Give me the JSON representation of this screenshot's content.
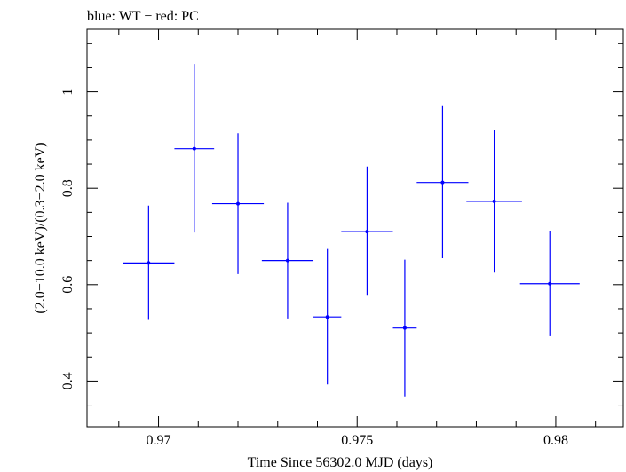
{
  "chart_data": {
    "type": "scatter",
    "title": "blue: WT − red: PC",
    "xlabel": "Time Since 56302.0 MJD (days)",
    "ylabel": "(2.0−10.0 keV)/(0.3−2.0 keV)",
    "xlim": [
      0.9682,
      0.9817
    ],
    "ylim": [
      0.305,
      1.13
    ],
    "x_ticks": [
      {
        "value": 0.97,
        "label": "0.97"
      },
      {
        "value": 0.975,
        "label": "0.975"
      },
      {
        "value": 0.98,
        "label": "0.98"
      }
    ],
    "y_ticks": [
      {
        "value": 0.4,
        "label": "0.4"
      },
      {
        "value": 0.6,
        "label": "0.6"
      },
      {
        "value": 0.8,
        "label": "0.8"
      },
      {
        "value": 1.0,
        "label": "1"
      }
    ],
    "x_minor_step": 0.001,
    "y_minor_step": 0.05,
    "grid": false,
    "series": [
      {
        "color": "#0000ff",
        "points": [
          {
            "x": 0.96975,
            "xerr": 0.00065,
            "y": 0.645,
            "ylo": 0.527,
            "yhi": 0.764
          },
          {
            "x": 0.9709,
            "xerr": 0.0005,
            "y": 0.882,
            "ylo": 0.708,
            "yhi": 1.058
          },
          {
            "x": 0.972,
            "xerr": 0.00065,
            "y": 0.768,
            "ylo": 0.622,
            "yhi": 0.914
          },
          {
            "x": 0.97325,
            "xerr": 0.00065,
            "y": 0.65,
            "ylo": 0.53,
            "yhi": 0.77
          },
          {
            "x": 0.97425,
            "xerr": 0.00035,
            "y": 0.533,
            "ylo": 0.393,
            "yhi": 0.674
          },
          {
            "x": 0.97525,
            "xerr": 0.00065,
            "y": 0.71,
            "ylo": 0.577,
            "yhi": 0.845
          },
          {
            "x": 0.9762,
            "xerr": 0.0003,
            "y": 0.51,
            "ylo": 0.368,
            "yhi": 0.652
          },
          {
            "x": 0.97715,
            "xerr": 0.00065,
            "y": 0.812,
            "ylo": 0.655,
            "yhi": 0.972
          },
          {
            "x": 0.97845,
            "xerr": 0.0007,
            "y": 0.773,
            "ylo": 0.625,
            "yhi": 0.922
          },
          {
            "x": 0.97985,
            "xerr": 0.00075,
            "y": 0.602,
            "ylo": 0.493,
            "yhi": 0.712
          }
        ]
      }
    ]
  }
}
